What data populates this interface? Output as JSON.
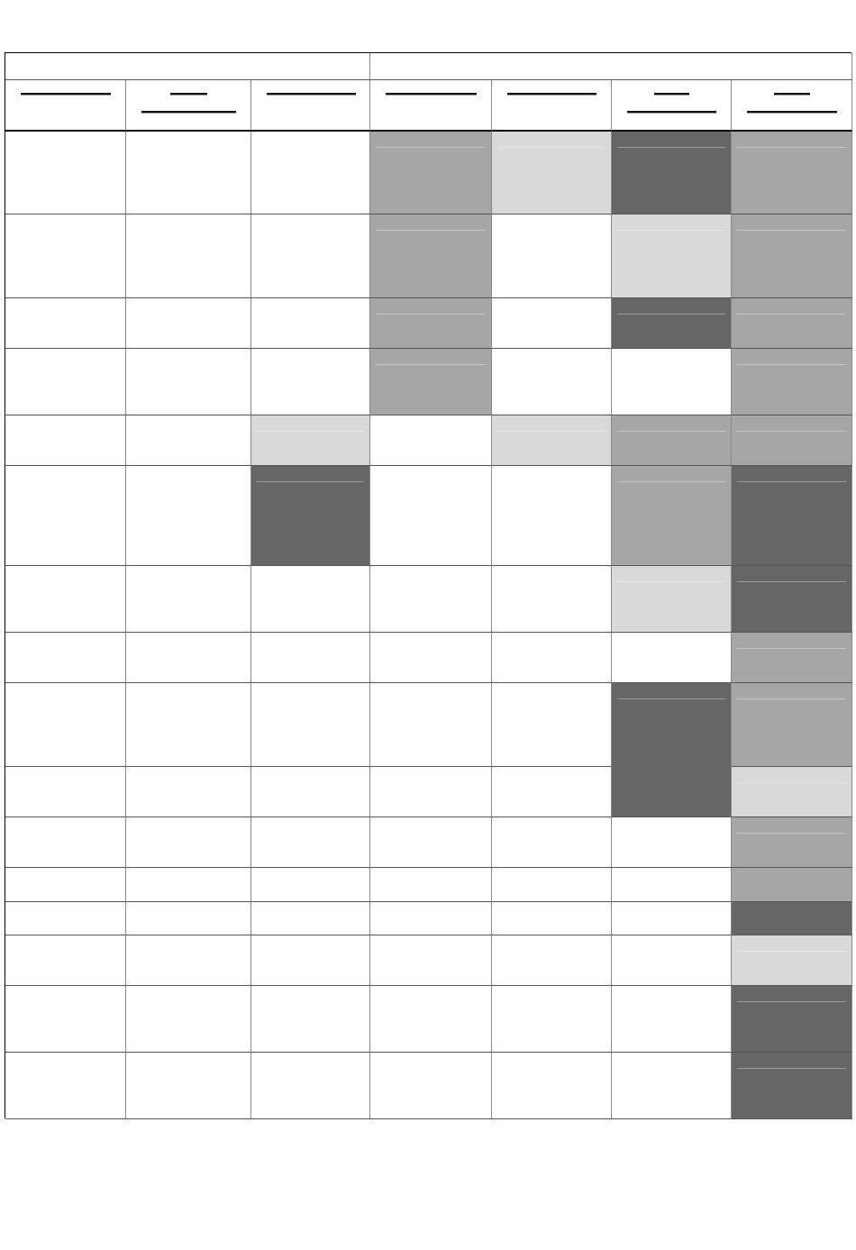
{
  "colors": {
    "light": "#d9d9d9",
    "mid": "#a6a6a6",
    "dark": "#666666",
    "none": "#ffffff"
  },
  "header": {
    "groups": [
      {
        "span": 3
      },
      {
        "span": 4
      }
    ],
    "columns": [
      {
        "lines": 1
      },
      {
        "lines": 2
      },
      {
        "lines": 1
      },
      {
        "lines": 1
      },
      {
        "lines": 1
      },
      {
        "lines": 2
      },
      {
        "lines": 2
      }
    ]
  },
  "rows": [
    [
      "none",
      "none",
      "none",
      "mid",
      "light",
      "dark",
      "mid"
    ],
    [
      "none",
      "none",
      "none",
      "mid",
      "none",
      "light",
      "mid"
    ],
    [
      "none",
      "none",
      "none",
      "mid",
      "none",
      "dark",
      "mid"
    ],
    [
      "none",
      "none",
      "none",
      "mid",
      "none",
      "none",
      "mid"
    ],
    [
      "none",
      "none",
      "light",
      "none",
      "light",
      "mid",
      "mid"
    ],
    [
      "none",
      "none",
      "dark",
      "none",
      "none",
      "mid",
      "dark"
    ],
    [
      "none",
      "none",
      "none",
      "none",
      "none",
      "light",
      "dark"
    ],
    [
      "none",
      "none",
      "none",
      "none",
      "none",
      "none",
      "mid"
    ],
    [
      "none",
      "none",
      "none",
      "none",
      "none",
      "dark",
      "mid"
    ],
    [
      "none",
      "none",
      "none",
      "none",
      "none",
      "dark",
      "light"
    ],
    [
      "none",
      "none",
      "none",
      "none",
      "none",
      "none",
      "mid"
    ],
    [
      "none",
      "none",
      "none",
      "none",
      "none",
      "none",
      "mid"
    ],
    [
      "none",
      "none",
      "none",
      "none",
      "none",
      "none",
      "dark"
    ],
    [
      "none",
      "none",
      "none",
      "none",
      "none",
      "none",
      "light"
    ],
    [
      "none",
      "none",
      "none",
      "none",
      "none",
      "none",
      "dark"
    ],
    [
      "none",
      "none",
      "none",
      "none",
      "none",
      "none",
      "dark"
    ]
  ]
}
